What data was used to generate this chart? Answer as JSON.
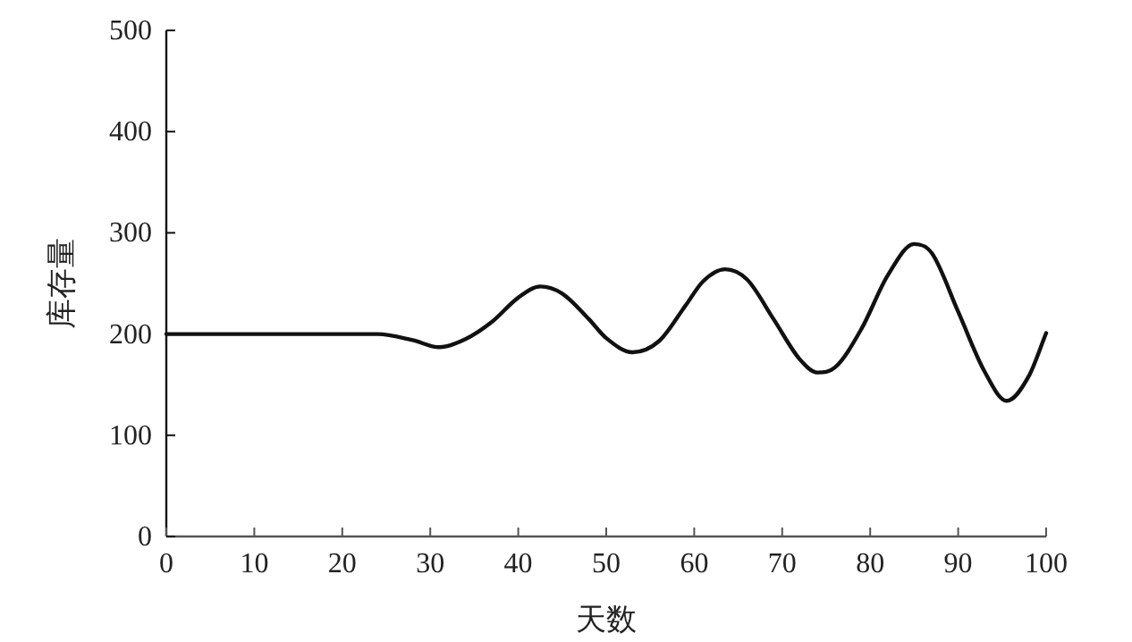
{
  "chart_data": {
    "type": "line",
    "xlabel": "天数",
    "ylabel": "库存量",
    "xlim": [
      0,
      100
    ],
    "ylim": [
      0,
      500
    ],
    "xticks": [
      0,
      10,
      20,
      30,
      40,
      50,
      60,
      70,
      80,
      90,
      100
    ],
    "yticks": [
      0,
      100,
      200,
      300,
      400,
      500
    ],
    "grid": false,
    "marker": "none",
    "line_style": "solid",
    "series": [
      {
        "color": "#111111",
        "x": [
          0,
          24,
          28,
          31,
          34,
          37,
          40,
          42.5,
          45,
          48,
          50,
          53,
          56,
          59,
          61,
          63.5,
          66,
          69,
          72,
          74,
          76,
          79,
          82,
          85,
          87,
          90,
          93,
          95.5,
          98,
          100
        ],
        "values": [
          200,
          200,
          194,
          187,
          195,
          212,
          236,
          247,
          240,
          215,
          196,
          182,
          193,
          228,
          252,
          264,
          254,
          215,
          175,
          162,
          167,
          205,
          258,
          289,
          280,
          222,
          163,
          134,
          158,
          201
        ]
      }
    ]
  }
}
